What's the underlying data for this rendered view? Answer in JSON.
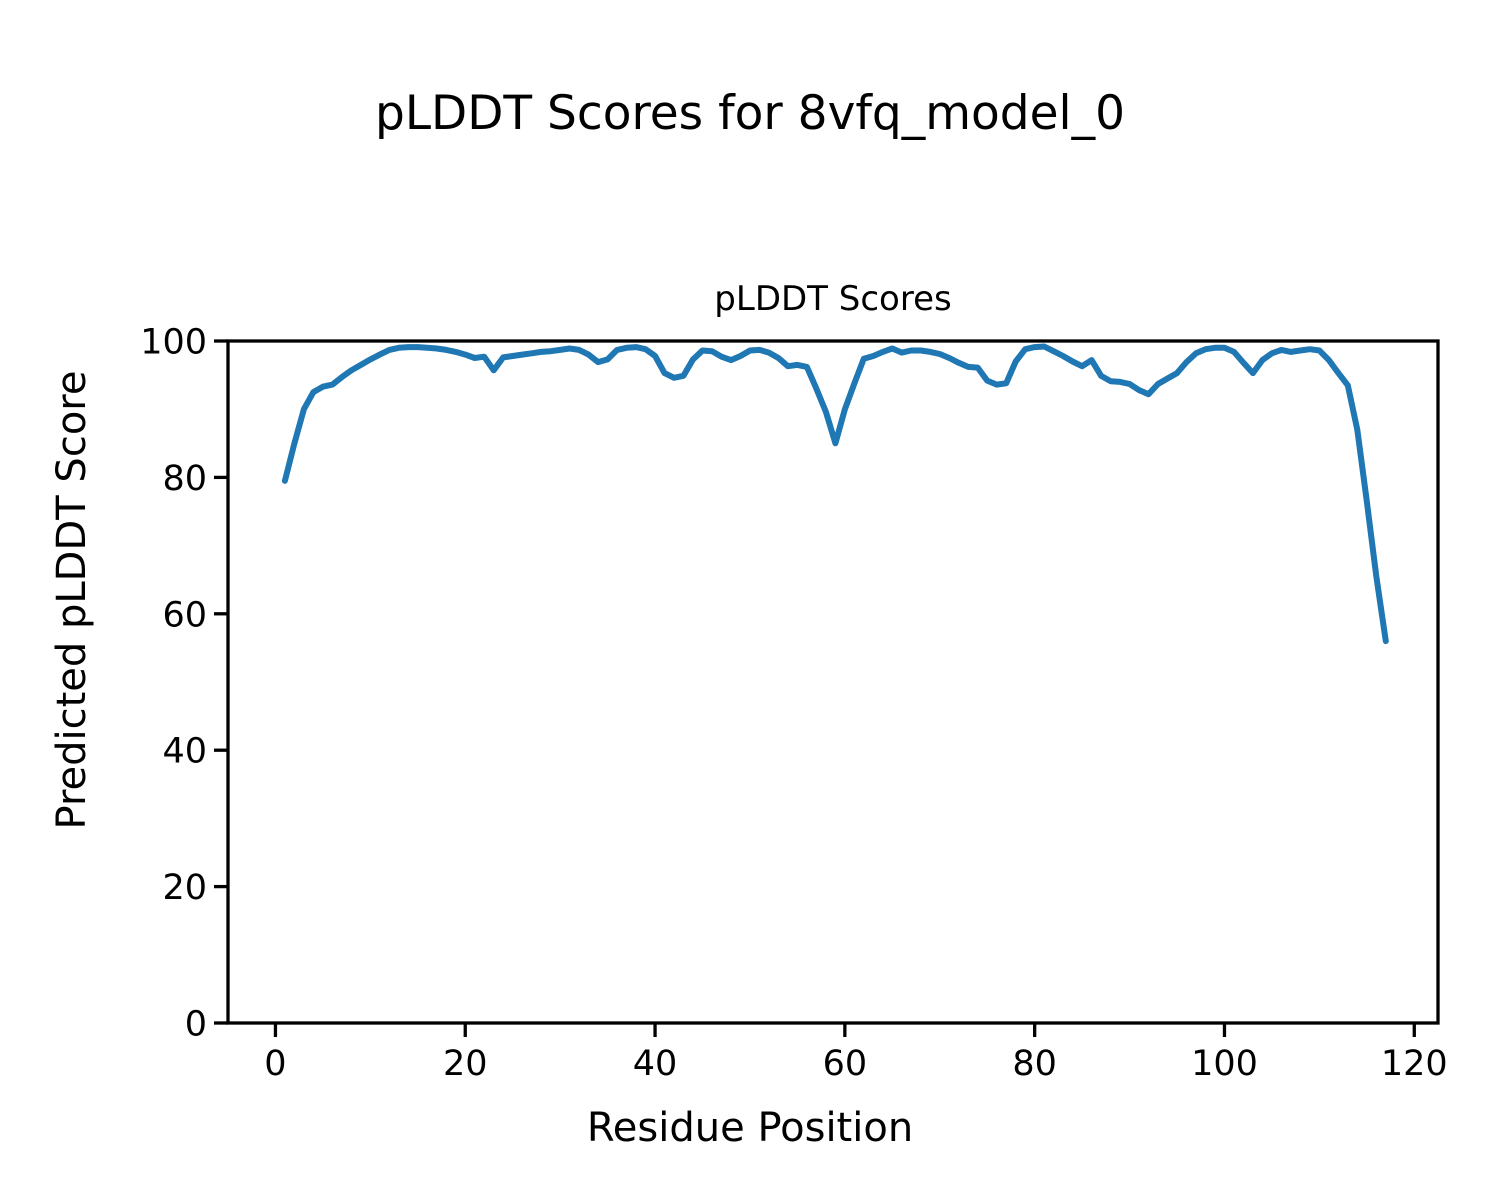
{
  "chart_data": {
    "type": "line",
    "suptitle": "pLDDT Scores for 8vfq_model_0",
    "title": "pLDDT Scores",
    "xlabel": "Residue Position",
    "ylabel": "Predicted pLDDT Score",
    "xlim": [
      -5,
      122.5
    ],
    "ylim": [
      0,
      100
    ],
    "x_ticks": [
      0,
      20,
      40,
      60,
      80,
      100,
      120
    ],
    "y_ticks": [
      0,
      20,
      40,
      60,
      80,
      100
    ],
    "grid": false,
    "legend": "none",
    "line_color": "#1f77b4",
    "axis_color": "#000000",
    "x": [
      1,
      2,
      3,
      4,
      5,
      6,
      7,
      8,
      9,
      10,
      11,
      12,
      13,
      14,
      15,
      16,
      17,
      18,
      19,
      20,
      21,
      22,
      23,
      24,
      25,
      26,
      27,
      28,
      29,
      30,
      31,
      32,
      33,
      34,
      35,
      36,
      37,
      38,
      39,
      40,
      41,
      42,
      43,
      44,
      45,
      46,
      47,
      48,
      49,
      50,
      51,
      52,
      53,
      54,
      55,
      56,
      57,
      58,
      59,
      60,
      61,
      62,
      63,
      64,
      65,
      66,
      67,
      68,
      69,
      70,
      71,
      72,
      73,
      74,
      75,
      76,
      77,
      78,
      79,
      80,
      81,
      82,
      83,
      84,
      85,
      86,
      87,
      88,
      89,
      90,
      91,
      92,
      93,
      94,
      95,
      96,
      97,
      98,
      99,
      100,
      101,
      102,
      103,
      104,
      105,
      106,
      107,
      108,
      109,
      110,
      111,
      112,
      113,
      114,
      115,
      116,
      117
    ],
    "values": [
      79.5,
      85.0,
      90.0,
      92.5,
      93.3,
      93.6,
      94.7,
      95.7,
      96.5,
      97.3,
      98.0,
      98.7,
      99.0,
      99.1,
      99.1,
      99.0,
      98.9,
      98.7,
      98.4,
      98.0,
      97.5,
      97.7,
      95.7,
      97.6,
      97.8,
      98.0,
      98.2,
      98.4,
      98.5,
      98.7,
      98.9,
      98.7,
      98.0,
      96.9,
      97.3,
      98.7,
      99.0,
      99.1,
      98.8,
      97.8,
      95.3,
      94.6,
      94.9,
      97.3,
      98.6,
      98.5,
      97.7,
      97.2,
      97.8,
      98.6,
      98.7,
      98.3,
      97.5,
      96.3,
      96.5,
      96.2,
      93.0,
      89.6,
      85.0,
      90.0,
      93.8,
      97.4,
      97.8,
      98.4,
      98.9,
      98.3,
      98.6,
      98.6,
      98.4,
      98.1,
      97.5,
      96.8,
      96.2,
      96.1,
      94.2,
      93.6,
      93.8,
      97.0,
      98.8,
      99.1,
      99.2,
      98.5,
      97.8,
      97.0,
      96.3,
      97.2,
      94.9,
      94.1,
      94.0,
      93.7,
      92.8,
      92.2,
      93.7,
      94.5,
      95.3,
      96.9,
      98.2,
      98.8,
      99.0,
      99.0,
      98.4,
      96.8,
      95.3,
      97.2,
      98.2,
      98.7,
      98.4,
      98.6,
      98.8,
      98.6,
      97.2,
      95.3,
      93.5,
      87.0,
      76.5,
      65.5,
      56.0
    ]
  }
}
